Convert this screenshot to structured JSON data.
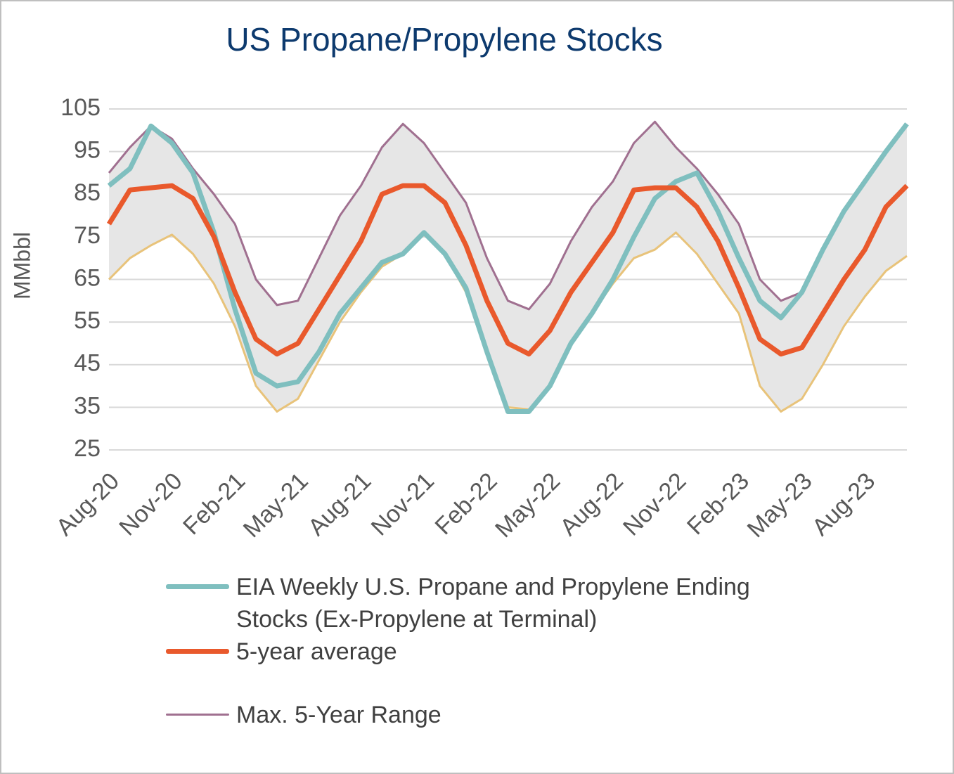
{
  "chart_data": {
    "type": "line",
    "title": "US Propane/Propylene Stocks",
    "y_label": "MMbbl",
    "categories": [
      "Aug-20",
      null,
      null,
      "Nov-20",
      null,
      null,
      "Feb-21",
      null,
      null,
      "May-21",
      null,
      null,
      "Aug-21",
      null,
      null,
      "Nov-21",
      null,
      null,
      "Feb-22",
      null,
      null,
      "May-22",
      null,
      null,
      "Aug-22",
      null,
      null,
      "Nov-22",
      null,
      null,
      "Feb-23",
      null,
      null,
      "May-23",
      null,
      null,
      "Aug-23",
      null,
      null
    ],
    "series": [
      {
        "name": "EIA Weekly U.S. Propane and Propylene Ending Stocks (Ex-Propylene at Terminal)",
        "color": "#7fbfbf",
        "width": 7,
        "values": [
          87,
          91,
          101,
          97,
          90,
          76,
          58,
          43,
          40,
          41,
          48,
          57,
          63,
          69,
          71,
          76,
          71,
          63,
          48,
          34,
          34,
          40,
          50,
          57,
          65,
          75,
          84,
          88,
          90,
          81,
          70,
          60,
          56,
          62,
          72,
          81,
          88,
          95,
          101.5
        ]
      },
      {
        "name": "5-year average",
        "color": "#e9592c",
        "width": 7,
        "values": [
          78,
          86,
          86.5,
          87,
          84,
          75,
          62,
          51,
          47.5,
          50,
          58,
          66,
          74,
          85,
          87,
          87,
          83,
          73,
          60,
          50,
          47.5,
          53,
          62,
          69,
          76,
          86,
          86.5,
          86.5,
          82,
          74,
          63,
          51,
          47.5,
          49,
          57,
          65,
          72,
          82,
          87
        ]
      },
      {
        "name": "Max. 5-Year Range",
        "color": "#a07090",
        "width": 3,
        "values": [
          90,
          96,
          101,
          98,
          91,
          85,
          78,
          65,
          59,
          60,
          70,
          80,
          87,
          96,
          101.5,
          97,
          90,
          83,
          70,
          60,
          58,
          64,
          74,
          82,
          88,
          97,
          102,
          96,
          91,
          85,
          78,
          65,
          60,
          62,
          72,
          81,
          88,
          95,
          101.5
        ]
      },
      {
        "color": "#e8c37a",
        "width": 3,
        "values": [
          65,
          70,
          73,
          75.5,
          71,
          64,
          54,
          40,
          34,
          37,
          46,
          55,
          62,
          68,
          71,
          75.5,
          71,
          62,
          48,
          35,
          34.5,
          40,
          50,
          57,
          64,
          70,
          72,
          76,
          71,
          64,
          57,
          40,
          34,
          37,
          45,
          54,
          61,
          67,
          70.5
        ]
      }
    ],
    "range_fill": "#e6e6e6",
    "ylim": [
      25,
      105
    ],
    "yticks": [
      25,
      35,
      45,
      55,
      65,
      75,
      85,
      95,
      105
    ],
    "grid": true
  }
}
